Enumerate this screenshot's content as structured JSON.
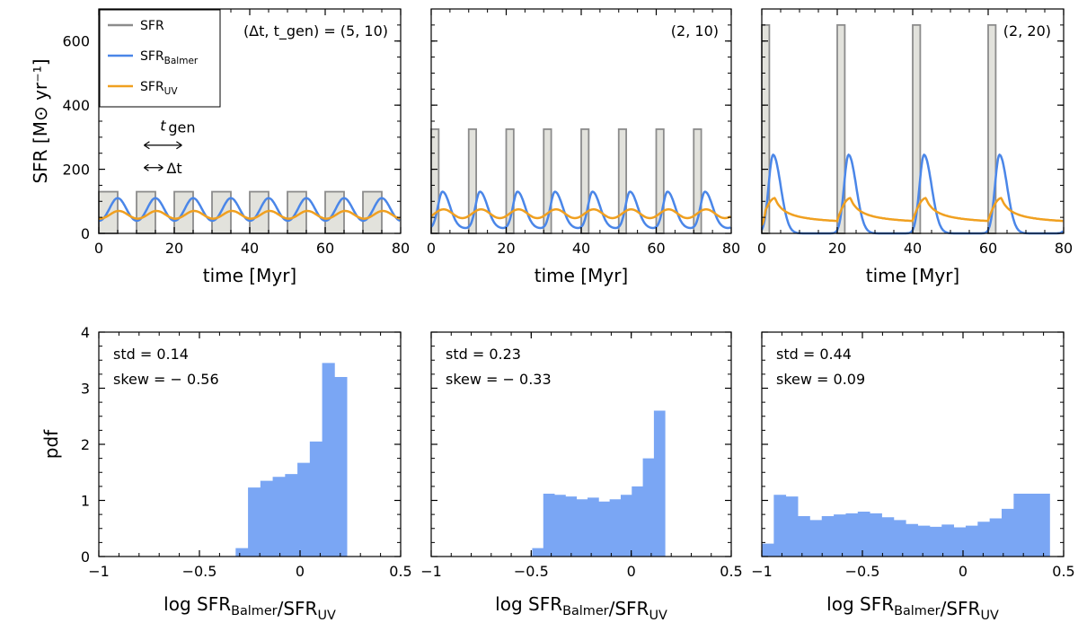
{
  "chart_data": [
    {
      "panel": "top-left",
      "type": "line",
      "xlabel": "time [Myr]",
      "ylabel": "SFR [M⊙ yr⁻¹]",
      "xlim": [
        0,
        80
      ],
      "ylim": [
        0,
        700
      ],
      "xticks": [
        "0",
        "20",
        "40",
        "60",
        "80"
      ],
      "xtick_values": [
        0,
        20,
        40,
        60,
        80
      ],
      "yticks": [
        "0",
        "200",
        "400",
        "600"
      ],
      "ytick_values": [
        0,
        200,
        400,
        600
      ],
      "annotation": "(Δt, t_gen) = (5, 10)",
      "params": {
        "dt": 5,
        "tgen": 10,
        "burst_start": 0
      },
      "sfr_burst_level": 130,
      "balmer_peak": 110,
      "uv_peak": 70,
      "uv_floor": 35,
      "series_names": [
        "SFR",
        "SFR_Balmer",
        "SFR_UV"
      ],
      "inset_labels": {
        "tgen": "t_gen",
        "dt": "↔Δt"
      }
    },
    {
      "panel": "top-middle",
      "type": "line",
      "xlabel": "time [Myr]",
      "xlim": [
        0,
        80
      ],
      "ylim": [
        0,
        700
      ],
      "xticks": [
        "0",
        "20",
        "40",
        "60",
        "80"
      ],
      "xtick_values": [
        0,
        20,
        40,
        60,
        80
      ],
      "annotation": "(2, 10)",
      "params": {
        "dt": 2,
        "tgen": 10,
        "burst_start": 0
      },
      "sfr_burst_level": 325,
      "balmer_peak": 130,
      "uv_peak": 75,
      "uv_floor": 35
    },
    {
      "panel": "top-right",
      "type": "line",
      "xlabel": "time [Myr]",
      "xlim": [
        0,
        80
      ],
      "ylim": [
        0,
        700
      ],
      "xticks": [
        "0",
        "20",
        "40",
        "60",
        "80"
      ],
      "xtick_values": [
        0,
        20,
        40,
        60,
        80
      ],
      "annotation": "(2, 20)",
      "params": {
        "dt": 2,
        "tgen": 20,
        "burst_start": 0
      },
      "sfr_burst_level": 650,
      "balmer_peak": 245,
      "uv_peak": 110,
      "uv_floor": 25
    },
    {
      "panel": "bottom-left",
      "type": "bar",
      "xlabel": "log SFR_Balmer/SFR_UV",
      "ylabel": "pdf",
      "xlim": [
        -1,
        0.5
      ],
      "ylim": [
        0,
        4
      ],
      "xticks": [
        "−1",
        "−0.5",
        "0",
        "0.5"
      ],
      "xtick_values": [
        -1,
        -0.5,
        0,
        0.5
      ],
      "yticks": [
        "0",
        "1",
        "2",
        "3",
        "4"
      ],
      "ytick_values": [
        0,
        1,
        2,
        3,
        4
      ],
      "stats": {
        "std": "std = 0.14",
        "skew": "skew = − 0.56"
      },
      "bin_start": -0.32,
      "bin_width": 0.0614,
      "values": [
        0.15,
        1.23,
        1.35,
        1.42,
        1.47,
        1.67,
        2.05,
        3.45,
        3.2
      ]
    },
    {
      "panel": "bottom-middle",
      "type": "bar",
      "xlabel": "log SFR_Balmer/SFR_UV",
      "xlim": [
        -1,
        0.5
      ],
      "ylim": [
        0,
        4
      ],
      "xticks": [
        "−1",
        "−0.5",
        "0",
        "0.5"
      ],
      "xtick_values": [
        -1,
        -0.5,
        0,
        0.5
      ],
      "stats": {
        "std": "std = 0.23",
        "skew": "skew = − 0.33"
      },
      "bin_start": -0.495,
      "bin_width": 0.0553,
      "values": [
        0.15,
        1.12,
        1.1,
        1.07,
        1.02,
        1.05,
        0.98,
        1.02,
        1.1,
        1.25,
        1.75,
        2.6
      ]
    },
    {
      "panel": "bottom-right",
      "type": "bar",
      "xlabel": "log SFR_Balmer/SFR_UV",
      "xlim": [
        -1,
        0.5
      ],
      "ylim": [
        0,
        4
      ],
      "xticks": [
        "−1",
        "−0.5",
        "0",
        "0.5"
      ],
      "xtick_values": [
        -1,
        -0.5,
        0,
        0.5
      ],
      "stats": {
        "std": "std = 0.44",
        "skew": "skew = 0.09"
      },
      "bin_start": -1.0,
      "bin_width": 0.0596,
      "values": [
        0.23,
        1.1,
        1.07,
        0.72,
        0.65,
        0.72,
        0.75,
        0.77,
        0.8,
        0.77,
        0.7,
        0.65,
        0.58,
        0.55,
        0.53,
        0.57,
        0.52,
        0.55,
        0.62,
        0.68,
        0.85,
        1.12,
        1.12,
        1.12
      ]
    }
  ],
  "legend": {
    "items": [
      {
        "name": "SFR",
        "sub": "",
        "color": "#8c8c8c"
      },
      {
        "name": "SFR",
        "sub": "Balmer",
        "color": "#4a86e8"
      },
      {
        "name": "SFR",
        "sub": "UV",
        "color": "#f0a020"
      }
    ]
  },
  "colors": {
    "sfr_line": "#8c8c8c",
    "sfr_fill": "#e2e2dc",
    "balmer": "#4a86e8",
    "uv": "#f0a020",
    "hist": "#7aa6f4"
  }
}
